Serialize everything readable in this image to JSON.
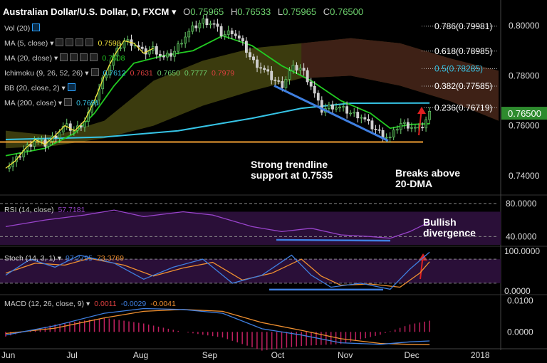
{
  "header": {
    "symbol": "Australian Dollar/U.S. Dollar, D, FXCM",
    "o_label": "O",
    "o": "0.75965",
    "h_label": "H",
    "h": "0.76533",
    "l_label": "L",
    "l": "0.75965",
    "c_label": "C",
    "c": "0.76500"
  },
  "legend": {
    "vol": "Vol (20)",
    "ma5": "MA (5, close)",
    "ma5_val": "0.7598",
    "ma20": "MA (20, close)",
    "ma20_val": "0.7608",
    "ichimoku": "Ichimoku (9, 26, 52, 26)",
    "ichi_vals": [
      "0.7612",
      "0.7631",
      "0.7650",
      "0.7777",
      "0.7979"
    ],
    "bb": "BB (20, close, 2)",
    "ma200": "MA (200, close)",
    "ma200_val": "0.7691",
    "rsi": "RSI (14, close)",
    "rsi_val": "57.7181",
    "stoch": "Stoch (14, 3, 1)",
    "stoch_k": "97.2795",
    "stoch_d": "73.3769",
    "macd": "MACD (12, 26, close, 9)",
    "macd_v1": "0.0011",
    "macd_v2": "-0.0029",
    "macd_v3": "-0.0041"
  },
  "annotations": {
    "support": [
      "Strong trendline",
      "support at 0.7535"
    ],
    "breaks": [
      "Breaks above",
      "20-DMA"
    ],
    "bullish": [
      "Bullish",
      "divergence"
    ]
  },
  "colors": {
    "up": "#6fd36f",
    "down": "#e0e0e0",
    "ma5": "#f2e33c",
    "ma20": "#22cc22",
    "ma200": "#36c4e6",
    "support": "#f2a033",
    "trend": "#3f7fe0",
    "cloud_bull": "#6b6b1a",
    "cloud_bear": "#3f1f17",
    "rsi": "#9944cc",
    "stoch_k": "#3f7fe0",
    "stoch_d": "#f09030",
    "arrow": "#e02020",
    "fib": "#ffffff",
    "fib_half": "#36c4e6",
    "price_tag": "#2e8b2e"
  },
  "chart_data": {
    "type": "line",
    "title": "Australian Dollar/U.S. Dollar, D, FXCM",
    "x_tick_labels": [
      "Jun",
      "Jul",
      "Aug",
      "Sep",
      "Oct",
      "Nov",
      "Dec",
      "2018"
    ],
    "price_axis": {
      "ylim": [
        0.734,
        0.808
      ],
      "ticks": [
        "0.80000",
        "0.78000",
        "0.76000",
        "0.74000"
      ],
      "current": "0.76500"
    },
    "rsi_axis": {
      "ylim": [
        30,
        85
      ],
      "ticks": [
        "80.0000",
        "40.0000"
      ]
    },
    "stoch_axis": {
      "ylim": [
        -5,
        105
      ],
      "ticks": [
        "100.0000",
        "0.0000"
      ]
    },
    "macd_axis": {
      "ylim": [
        -0.0045,
        0.0115
      ],
      "ticks": [
        "0.0100",
        "0.0000"
      ]
    },
    "fibonacci": [
      {
        "label": "0.786(0.79981)",
        "value": 0.79981
      },
      {
        "label": "0.618(0.78985)",
        "value": 0.78985
      },
      {
        "label": "0.5(0.78285)",
        "value": 0.78285
      },
      {
        "label": "0.382(0.77585)",
        "value": 0.77585
      },
      {
        "label": "0.236(0.76719)",
        "value": 0.76719
      }
    ],
    "support_level": 0.7535,
    "trendline": {
      "start": {
        "month": "Oct",
        "value": 0.776
      },
      "end": {
        "month": "Nov",
        "value": 0.754
      }
    },
    "price_path": [
      {
        "t": 0.0,
        "v": 0.743
      },
      {
        "t": 0.02,
        "v": 0.746
      },
      {
        "t": 0.04,
        "v": 0.751
      },
      {
        "t": 0.06,
        "v": 0.7545
      },
      {
        "t": 0.08,
        "v": 0.7525
      },
      {
        "t": 0.1,
        "v": 0.756
      },
      {
        "t": 0.12,
        "v": 0.76
      },
      {
        "t": 0.14,
        "v": 0.758
      },
      {
        "t": 0.16,
        "v": 0.762
      },
      {
        "t": 0.18,
        "v": 0.77
      },
      {
        "t": 0.2,
        "v": 0.78
      },
      {
        "t": 0.22,
        "v": 0.788
      },
      {
        "t": 0.24,
        "v": 0.794
      },
      {
        "t": 0.26,
        "v": 0.793
      },
      {
        "t": 0.28,
        "v": 0.789
      },
      {
        "t": 0.3,
        "v": 0.791
      },
      {
        "t": 0.32,
        "v": 0.787
      },
      {
        "t": 0.34,
        "v": 0.789
      },
      {
        "t": 0.36,
        "v": 0.795
      },
      {
        "t": 0.38,
        "v": 0.799
      },
      {
        "t": 0.4,
        "v": 0.802
      },
      {
        "t": 0.42,
        "v": 0.801
      },
      {
        "t": 0.44,
        "v": 0.796
      },
      {
        "t": 0.46,
        "v": 0.798
      },
      {
        "t": 0.48,
        "v": 0.793
      },
      {
        "t": 0.5,
        "v": 0.786
      },
      {
        "t": 0.52,
        "v": 0.783
      },
      {
        "t": 0.54,
        "v": 0.779
      },
      {
        "t": 0.56,
        "v": 0.776
      },
      {
        "t": 0.58,
        "v": 0.783
      },
      {
        "t": 0.6,
        "v": 0.783
      },
      {
        "t": 0.62,
        "v": 0.776
      },
      {
        "t": 0.64,
        "v": 0.766
      },
      {
        "t": 0.66,
        "v": 0.768
      },
      {
        "t": 0.68,
        "v": 0.767
      },
      {
        "t": 0.7,
        "v": 0.765
      },
      {
        "t": 0.72,
        "v": 0.764
      },
      {
        "t": 0.74,
        "v": 0.76
      },
      {
        "t": 0.76,
        "v": 0.757
      },
      {
        "t": 0.78,
        "v": 0.755
      },
      {
        "t": 0.8,
        "v": 0.761
      },
      {
        "t": 0.82,
        "v": 0.76
      },
      {
        "t": 0.84,
        "v": 0.758
      },
      {
        "t": 0.86,
        "v": 0.765
      }
    ],
    "ma20_path": [
      {
        "t": 0.0,
        "v": 0.748
      },
      {
        "t": 0.08,
        "v": 0.751
      },
      {
        "t": 0.14,
        "v": 0.757
      },
      {
        "t": 0.18,
        "v": 0.765
      },
      {
        "t": 0.22,
        "v": 0.776
      },
      {
        "t": 0.26,
        "v": 0.785
      },
      {
        "t": 0.32,
        "v": 0.788
      },
      {
        "t": 0.38,
        "v": 0.79
      },
      {
        "t": 0.44,
        "v": 0.796
      },
      {
        "t": 0.5,
        "v": 0.792
      },
      {
        "t": 0.56,
        "v": 0.784
      },
      {
        "t": 0.62,
        "v": 0.778
      },
      {
        "t": 0.68,
        "v": 0.77
      },
      {
        "t": 0.74,
        "v": 0.765
      },
      {
        "t": 0.78,
        "v": 0.759
      },
      {
        "t": 0.82,
        "v": 0.7605
      },
      {
        "t": 0.86,
        "v": 0.7608
      }
    ],
    "ma200_path": [
      {
        "t": 0.0,
        "v": 0.7545
      },
      {
        "t": 0.2,
        "v": 0.7555
      },
      {
        "t": 0.35,
        "v": 0.758
      },
      {
        "t": 0.5,
        "v": 0.763
      },
      {
        "t": 0.6,
        "v": 0.767
      },
      {
        "t": 0.7,
        "v": 0.769
      },
      {
        "t": 0.86,
        "v": 0.7691
      }
    ],
    "cloud_upper": [
      {
        "t": 0.0,
        "v": 0.758
      },
      {
        "t": 0.1,
        "v": 0.756
      },
      {
        "t": 0.2,
        "v": 0.762
      },
      {
        "t": 0.3,
        "v": 0.778
      },
      {
        "t": 0.4,
        "v": 0.786
      },
      {
        "t": 0.5,
        "v": 0.791
      },
      {
        "t": 0.6,
        "v": 0.793
      },
      {
        "t": 0.7,
        "v": 0.795
      },
      {
        "t": 0.8,
        "v": 0.793
      },
      {
        "t": 0.9,
        "v": 0.787
      },
      {
        "t": 1.0,
        "v": 0.782
      }
    ],
    "cloud_lower": [
      {
        "t": 0.0,
        "v": 0.751
      },
      {
        "t": 0.1,
        "v": 0.752
      },
      {
        "t": 0.2,
        "v": 0.755
      },
      {
        "t": 0.3,
        "v": 0.76
      },
      {
        "t": 0.4,
        "v": 0.768
      },
      {
        "t": 0.5,
        "v": 0.774
      },
      {
        "t": 0.6,
        "v": 0.779
      },
      {
        "t": 0.7,
        "v": 0.78
      },
      {
        "t": 0.8,
        "v": 0.776
      },
      {
        "t": 0.9,
        "v": 0.77
      },
      {
        "t": 1.0,
        "v": 0.762
      }
    ],
    "rsi_path": [
      {
        "t": 0.0,
        "v": 52
      },
      {
        "t": 0.08,
        "v": 60
      },
      {
        "t": 0.16,
        "v": 66
      },
      {
        "t": 0.22,
        "v": 72
      },
      {
        "t": 0.28,
        "v": 64
      },
      {
        "t": 0.36,
        "v": 70
      },
      {
        "t": 0.42,
        "v": 66
      },
      {
        "t": 0.5,
        "v": 52
      },
      {
        "t": 0.56,
        "v": 46
      },
      {
        "t": 0.62,
        "v": 50
      },
      {
        "t": 0.68,
        "v": 42
      },
      {
        "t": 0.74,
        "v": 40
      },
      {
        "t": 0.78,
        "v": 38
      },
      {
        "t": 0.82,
        "v": 46
      },
      {
        "t": 0.86,
        "v": 57.7
      }
    ],
    "stoch_k_path": [
      {
        "t": 0.0,
        "v": 40
      },
      {
        "t": 0.05,
        "v": 80
      },
      {
        "t": 0.1,
        "v": 60
      },
      {
        "t": 0.15,
        "v": 90
      },
      {
        "t": 0.22,
        "v": 70
      },
      {
        "t": 0.28,
        "v": 30
      },
      {
        "t": 0.34,
        "v": 60
      },
      {
        "t": 0.4,
        "v": 80
      },
      {
        "t": 0.46,
        "v": 20
      },
      {
        "t": 0.52,
        "v": 40
      },
      {
        "t": 0.58,
        "v": 90
      },
      {
        "t": 0.62,
        "v": 40
      },
      {
        "t": 0.66,
        "v": 10
      },
      {
        "t": 0.72,
        "v": 20
      },
      {
        "t": 0.78,
        "v": 5
      },
      {
        "t": 0.82,
        "v": 55
      },
      {
        "t": 0.86,
        "v": 97.3
      }
    ],
    "stoch_d_path": [
      {
        "t": 0.0,
        "v": 45
      },
      {
        "t": 0.06,
        "v": 70
      },
      {
        "t": 0.12,
        "v": 65
      },
      {
        "t": 0.17,
        "v": 82
      },
      {
        "t": 0.24,
        "v": 65
      },
      {
        "t": 0.3,
        "v": 38
      },
      {
        "t": 0.36,
        "v": 58
      },
      {
        "t": 0.42,
        "v": 72
      },
      {
        "t": 0.48,
        "v": 28
      },
      {
        "t": 0.54,
        "v": 45
      },
      {
        "t": 0.6,
        "v": 80
      },
      {
        "t": 0.64,
        "v": 38
      },
      {
        "t": 0.68,
        "v": 15
      },
      {
        "t": 0.74,
        "v": 18
      },
      {
        "t": 0.8,
        "v": 10
      },
      {
        "t": 0.84,
        "v": 45
      },
      {
        "t": 0.86,
        "v": 73.4
      }
    ],
    "macd_line": [
      {
        "t": 0.0,
        "v": -0.001
      },
      {
        "t": 0.1,
        "v": 0.002
      },
      {
        "t": 0.2,
        "v": 0.006
      },
      {
        "t": 0.28,
        "v": 0.0075
      },
      {
        "t": 0.36,
        "v": 0.0072
      },
      {
        "t": 0.44,
        "v": 0.006
      },
      {
        "t": 0.52,
        "v": 0.001
      },
      {
        "t": 0.6,
        "v": -0.001
      },
      {
        "t": 0.68,
        "v": -0.0035
      },
      {
        "t": 0.76,
        "v": -0.004
      },
      {
        "t": 0.82,
        "v": -0.0032
      },
      {
        "t": 0.86,
        "v": -0.0029
      }
    ],
    "macd_signal": [
      {
        "t": 0.0,
        "v": -0.0005
      },
      {
        "t": 0.1,
        "v": 0.0012
      },
      {
        "t": 0.2,
        "v": 0.0045
      },
      {
        "t": 0.28,
        "v": 0.0066
      },
      {
        "t": 0.36,
        "v": 0.0072
      },
      {
        "t": 0.44,
        "v": 0.0066
      },
      {
        "t": 0.52,
        "v": 0.003
      },
      {
        "t": 0.6,
        "v": 0.0005
      },
      {
        "t": 0.68,
        "v": -0.0022
      },
      {
        "t": 0.76,
        "v": -0.0037
      },
      {
        "t": 0.82,
        "v": -0.004
      },
      {
        "t": 0.86,
        "v": -0.0041
      }
    ]
  }
}
